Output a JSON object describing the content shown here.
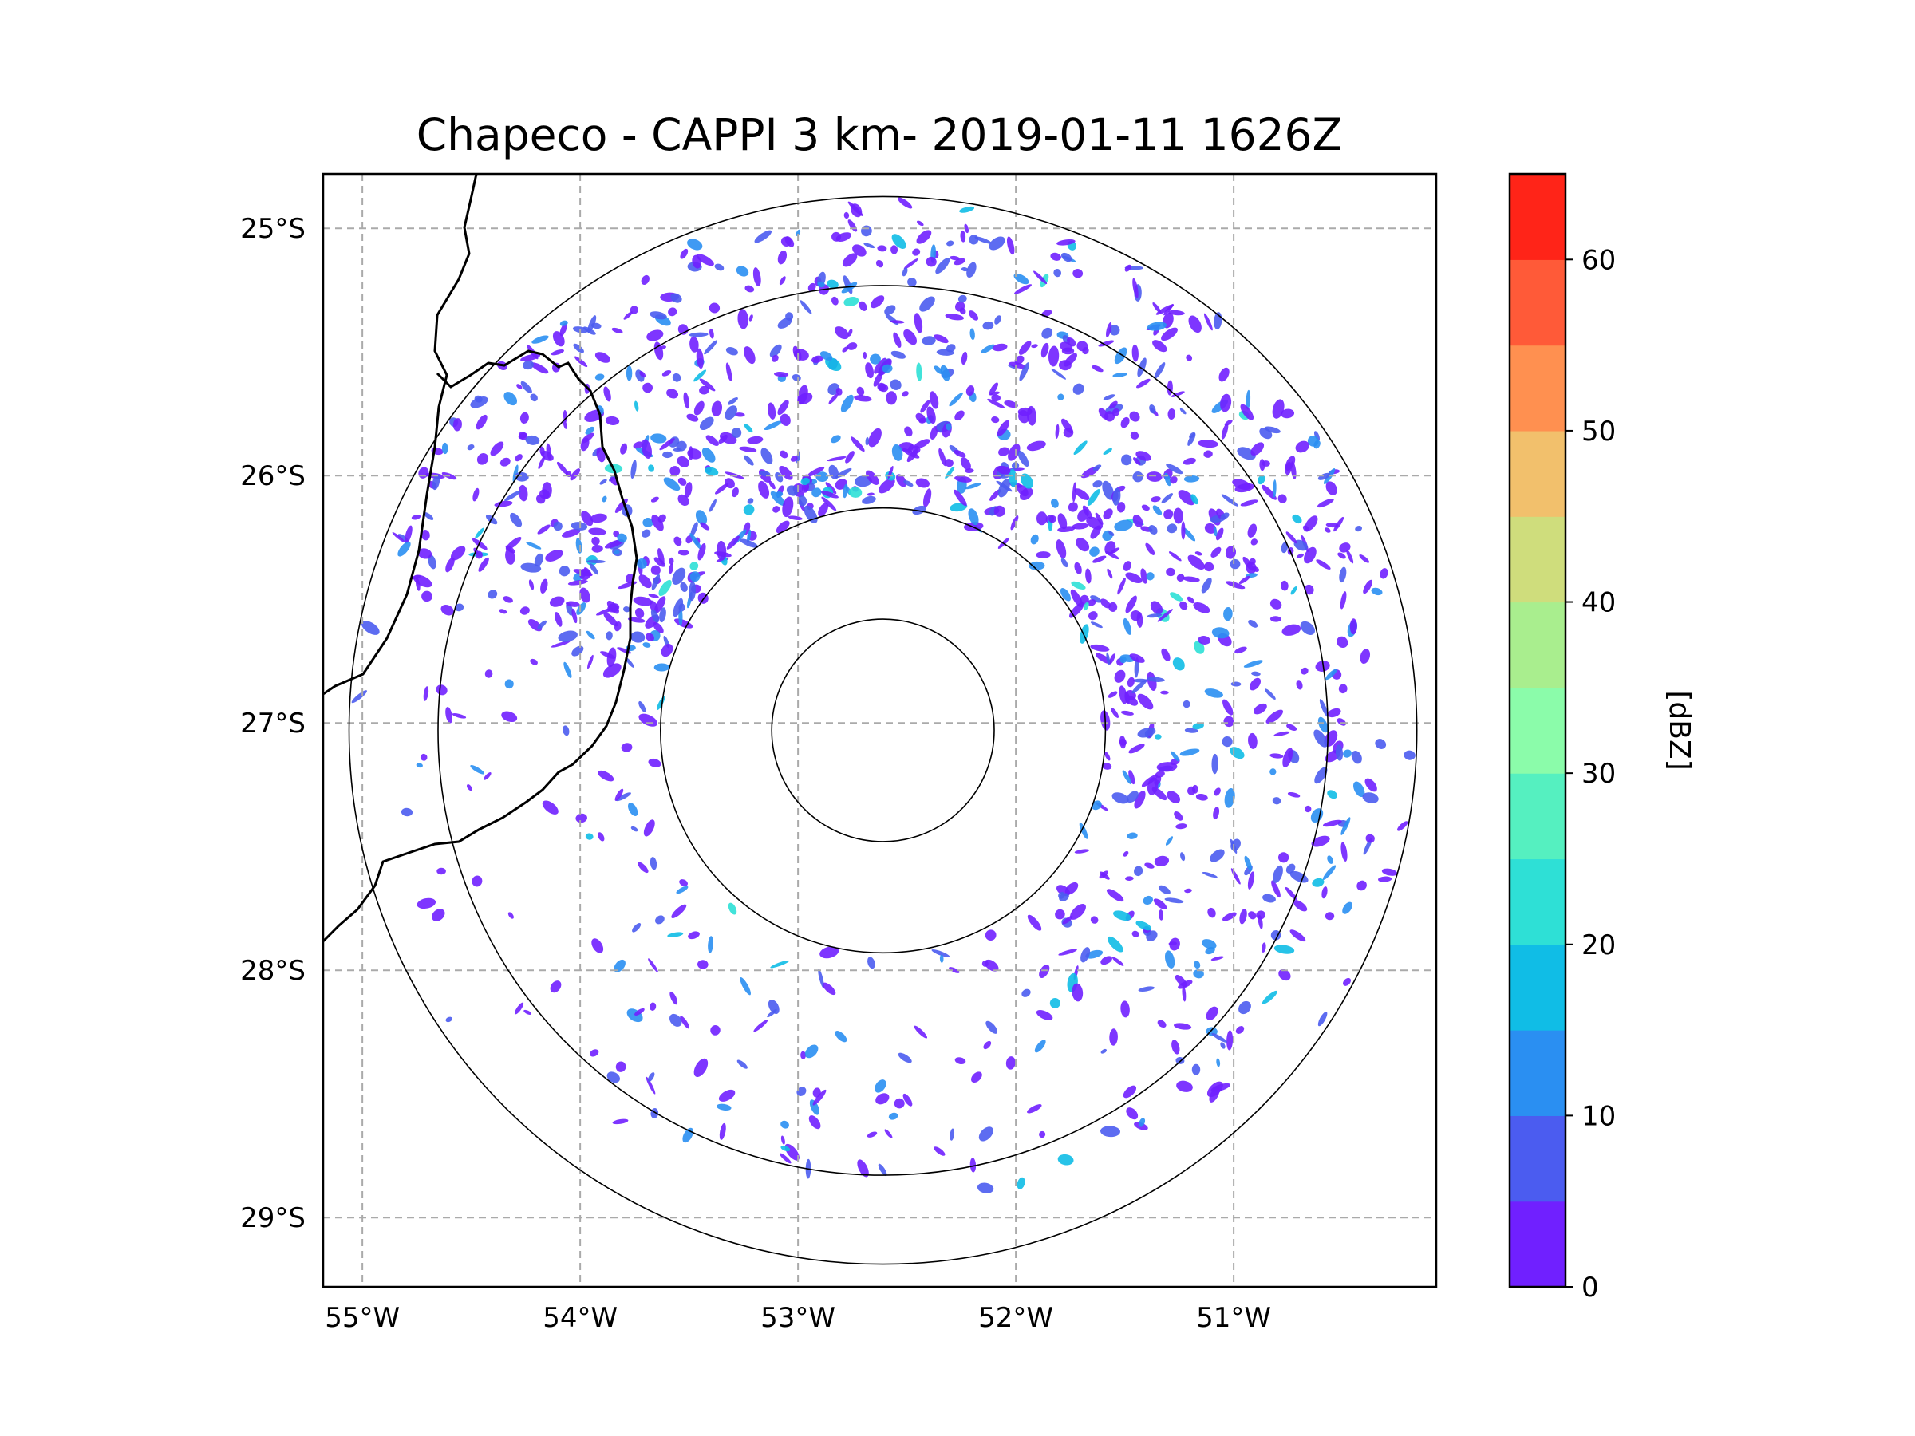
{
  "title": "Chapeco - CAPPI 3 km- 2019-01-11 1626Z",
  "map": {
    "extent": {
      "lon_min": -55.18,
      "lon_max": -50.07,
      "lat_min": -29.28,
      "lat_max": -24.78
    },
    "radar_center": {
      "lon": -52.61,
      "lat": -27.03
    },
    "range_rings_km": [
      50,
      100,
      200,
      240
    ],
    "lat_ticks": [
      {
        "value": -25,
        "label": "25°S"
      },
      {
        "value": -26,
        "label": "26°S"
      },
      {
        "value": -27,
        "label": "27°S"
      },
      {
        "value": -28,
        "label": "28°S"
      },
      {
        "value": -29,
        "label": "29°S"
      }
    ],
    "lon_ticks": [
      {
        "value": -55,
        "label": "55°W"
      },
      {
        "value": -54,
        "label": "54°W"
      },
      {
        "value": -53,
        "label": "53°W"
      },
      {
        "value": -52,
        "label": "52°W"
      },
      {
        "value": -51,
        "label": "51°W"
      }
    ],
    "gridline_style": "dashed",
    "echo_coverage": "radar ring 100-240 km; strongest to the north and east, scattered cells to the south"
  },
  "colorbar": {
    "label": "[dBZ]",
    "min": 0,
    "max": 65,
    "step": 5,
    "tick_values": [
      0,
      10,
      20,
      30,
      40,
      50,
      60
    ],
    "tick_labels": [
      "0",
      "10",
      "20",
      "30",
      "40",
      "50",
      "60"
    ],
    "colors": [
      "#7020ff",
      "#4b5cf0",
      "#2a8ff2",
      "#10bde6",
      "#2ee0d6",
      "#55f0c0",
      "#8bfcaa",
      "#a9ee8e",
      "#cfdd7c",
      "#f2c06c",
      "#ff9050",
      "#ff5a38",
      "#ff2418"
    ]
  }
}
